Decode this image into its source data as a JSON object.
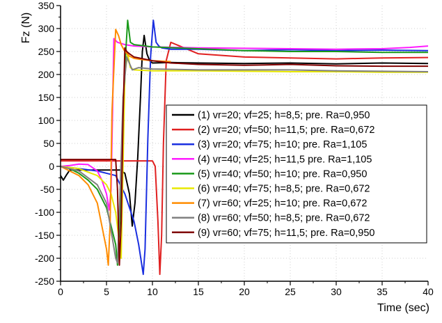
{
  "chart_data": {
    "type": "line",
    "title": "",
    "xlabel": "Time (sec)",
    "ylabel": "Fz (N)",
    "xlim": [
      0,
      40
    ],
    "ylim": [
      -250,
      350
    ],
    "xticks": [
      0,
      5,
      10,
      15,
      20,
      25,
      30,
      35,
      40
    ],
    "yticks": [
      -250,
      -200,
      -150,
      -100,
      -50,
      0,
      50,
      100,
      150,
      200,
      250,
      300,
      350
    ],
    "grid": "dotted",
    "legend_position": "center-right",
    "series": [
      {
        "name": "(1) vr=20; vf=25; h=8,5; pre. Ra=0,950",
        "color": "#000000",
        "x": [
          0,
          0.3,
          0.6,
          1,
          2,
          3,
          4,
          5,
          6,
          6.5,
          7,
          7.5,
          7.8,
          8.1,
          8.4,
          8.7,
          8.9,
          9.1,
          9.4,
          9.7,
          10,
          12,
          15,
          20,
          25,
          30,
          35,
          40
        ],
        "y": [
          -20,
          -30,
          -20,
          -8,
          -8,
          -8,
          -8,
          -8,
          -8,
          -8,
          -15,
          -60,
          -130,
          -80,
          20,
          150,
          250,
          285,
          245,
          230,
          225,
          226,
          225,
          224,
          225,
          223,
          225,
          224
        ]
      },
      {
        "name": "(2) vr=20; vf=50; h=11,5; pre. Ra=0,672",
        "color": "#e02020",
        "x": [
          0,
          1,
          2,
          4,
          6,
          8,
          9,
          10,
          10.3,
          10.6,
          10.8,
          11,
          11.2,
          11.5,
          12,
          15,
          20,
          25,
          30,
          35,
          40
        ],
        "y": [
          12,
          12,
          12,
          12,
          12,
          12,
          12,
          12,
          0,
          -120,
          -235,
          -150,
          50,
          230,
          270,
          245,
          238,
          236,
          234,
          236,
          237
        ]
      },
      {
        "name": "(3) vr=20; vf=75; h=10; pre. Ra=1,105",
        "color": "#1a2fe0",
        "x": [
          0,
          2,
          4,
          6,
          7,
          8,
          8.5,
          9,
          9.2,
          9.5,
          9.8,
          10.1,
          10.4,
          10.7,
          11,
          12,
          15,
          20,
          25,
          30,
          35,
          40
        ],
        "y": [
          0,
          -5,
          -10,
          -20,
          -60,
          -120,
          -170,
          -235,
          -180,
          60,
          240,
          318,
          270,
          262,
          258,
          255,
          255,
          252,
          254,
          252,
          253,
          252
        ]
      },
      {
        "name": "(4) vr=40; vf=25; h=11,5 pre. Ra=1,105",
        "color": "#ff1aff",
        "x": [
          0,
          1,
          2,
          3,
          4,
          4.5,
          5,
          5.3,
          5.5,
          5.8,
          6.2,
          7,
          8,
          10,
          15,
          20,
          25,
          30,
          35,
          38,
          40
        ],
        "y": [
          0,
          2,
          5,
          4,
          -10,
          -30,
          -60,
          -95,
          -50,
          278,
          270,
          265,
          262,
          260,
          258,
          257,
          256,
          255,
          256,
          259,
          262
        ]
      },
      {
        "name": "(5) vr=40; vf=50; h=10; pre. Ra=0,950",
        "color": "#1a9a1a",
        "x": [
          0,
          1,
          2,
          3,
          4,
          5,
          5.5,
          6,
          6.2,
          6.5,
          6.8,
          7.1,
          7.3,
          7.6,
          8,
          10,
          15,
          20,
          25,
          30,
          35,
          40
        ],
        "y": [
          0,
          -5,
          -15,
          -30,
          -50,
          -90,
          -130,
          -170,
          -215,
          -100,
          80,
          250,
          318,
          270,
          265,
          260,
          256,
          252,
          250,
          250,
          248,
          248
        ]
      },
      {
        "name": "(6) vr=40; vf=75; h=8,5; pre. Ra=0,672",
        "color": "#e8e800",
        "x": [
          0,
          2,
          4,
          5,
          5.5,
          6,
          6.3,
          6.6,
          7,
          7.3,
          7.6,
          8,
          10,
          15,
          20,
          25,
          30,
          35,
          40
        ],
        "y": [
          0,
          -5,
          -20,
          -40,
          -60,
          -100,
          -150,
          -200,
          200,
          245,
          215,
          210,
          208,
          208,
          207,
          206,
          206,
          205,
          205
        ]
      },
      {
        "name": "(7) vr=60; vf=25; h=10; pre. Ra=0,672",
        "color": "#ff8c00",
        "x": [
          0,
          1,
          2,
          3,
          4,
          4.5,
          5,
          5.2,
          5.4,
          5.6,
          6,
          6.3,
          6.6,
          7,
          7.5,
          8,
          9,
          10,
          12
        ],
        "y": [
          0,
          -10,
          -20,
          -40,
          -80,
          -130,
          -180,
          -215,
          -120,
          120,
          298,
          285,
          265,
          250,
          240,
          235,
          232,
          230,
          228
        ]
      },
      {
        "name": "(8) vr=60; vf=50; h=8,5; pre. Ra=0,672",
        "color": "#808080",
        "x": [
          0,
          2,
          4,
          5,
          5.5,
          6,
          6.2,
          6.4,
          6.8,
          7.2,
          7.8,
          8.5,
          10,
          15,
          20,
          25,
          30,
          35,
          40
        ],
        "y": [
          0,
          -10,
          -40,
          -80,
          -140,
          -200,
          -210,
          -100,
          150,
          238,
          210,
          215,
          212,
          210,
          210,
          210,
          208,
          207,
          206
        ]
      },
      {
        "name": "(9) vr=60; vf=75; h=11,5; pre. Ra=0,950",
        "color": "#800000",
        "x": [
          0,
          1,
          2,
          4,
          5,
          6,
          6.2,
          6.4,
          6.6,
          6.8,
          7,
          7.2,
          7.5,
          8,
          10,
          12,
          15,
          20,
          25,
          30,
          35,
          40
        ],
        "y": [
          15,
          15,
          15,
          15,
          15,
          15,
          -50,
          -215,
          -120,
          110,
          258,
          250,
          245,
          238,
          230,
          225,
          222,
          220,
          222,
          219,
          218,
          218
        ]
      }
    ]
  }
}
